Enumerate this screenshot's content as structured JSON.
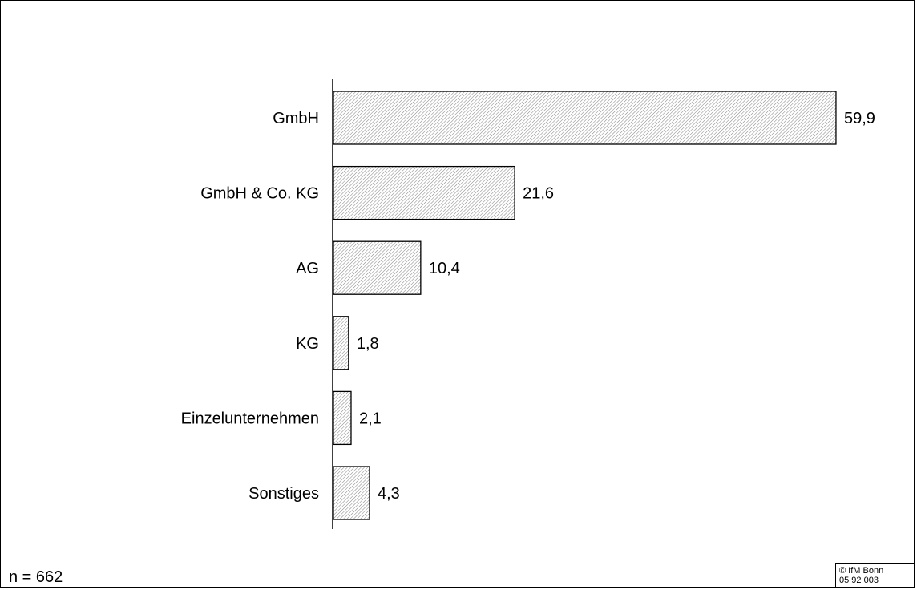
{
  "chart_data": {
    "type": "bar",
    "orientation": "horizontal",
    "categories": [
      "GmbH",
      "GmbH & Co. KG",
      "AG",
      "KG",
      "Einzelunternehmen",
      "Sonstiges"
    ],
    "values": [
      59.9,
      21.6,
      10.4,
      1.8,
      2.1,
      4.3
    ],
    "value_labels": [
      "59,9",
      "21,6",
      "10,4",
      "1,8",
      "2,1",
      "4,3"
    ],
    "xlim": [
      0,
      60
    ],
    "fill": "hatched",
    "grid": false
  },
  "note": "n = 662",
  "copyright": [
    "© IfM Bonn",
    "05 92 003"
  ]
}
